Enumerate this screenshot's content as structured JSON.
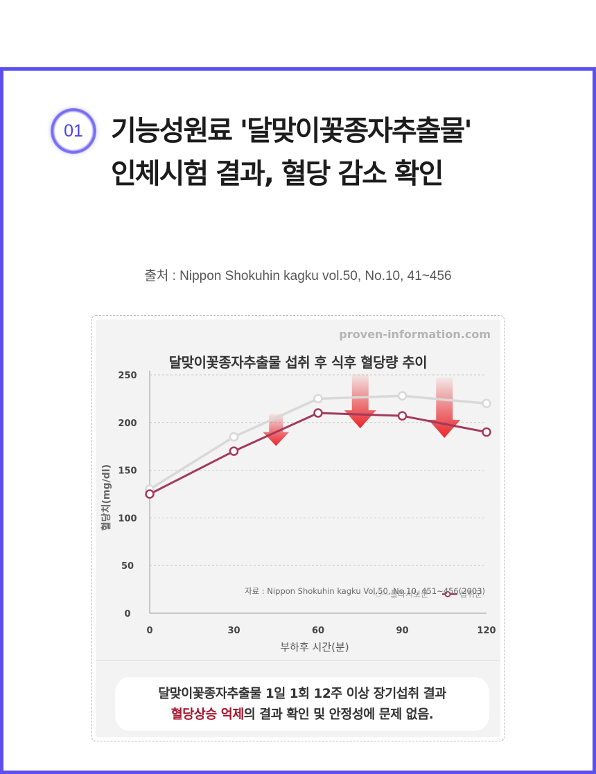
{
  "step_number": "01",
  "headline": {
    "line1": "기능성원료 '달맞이꽃종자추출물'",
    "line2": "인체시험 결과, 혈당 감소 확인"
  },
  "source_line": "출처 : Nippon Shokuhin kagku vol.50, No.10, 41~456",
  "chart_card": {
    "watermark": "proven-information.com",
    "summary": {
      "line1": "달맞이꽃종자추출물 1일 1회 12주 이상 장기섭취 결과",
      "highlight": "혈당상승 억제",
      "line2_rest": "의 결과 확인 및 안정성에 문제 없음."
    }
  },
  "colors": {
    "accent": "#5b4ff0",
    "placebo": "#d8d8d8",
    "intake": "#a3395b",
    "arrow": "#e8262b",
    "highlight": "#a4162c"
  },
  "chart_data": {
    "type": "line",
    "title": "달맞이꽃종자추출물 섭취 후 식후 혈당량 추이",
    "xlabel": "부하후 시간(분)",
    "ylabel": "혈당치(mg/dl)",
    "x": [
      0,
      30,
      60,
      90,
      120
    ],
    "x_ticks": [
      "0",
      "30",
      "60",
      "90",
      "120"
    ],
    "y_ticks": [
      "0",
      "50",
      "100",
      "150",
      "200",
      "250"
    ],
    "xlim": [
      0,
      120
    ],
    "ylim": [
      0,
      250
    ],
    "grid": "dashed horizontal",
    "legend_position": "bottom-right",
    "series": [
      {
        "name": "플라시보군",
        "x": [
          0,
          30,
          60,
          90,
          120
        ],
        "values": [
          130,
          185,
          225,
          228,
          220
        ]
      },
      {
        "name": "섭취군",
        "x": [
          0,
          30,
          60,
          90,
          120
        ],
        "values": [
          125,
          170,
          210,
          207,
          190
        ]
      }
    ],
    "reduction_arrows_at_x": [
      45,
      75,
      105
    ],
    "annotation": "자료 : Nippon Shokuhin kagku Vol.50, No.10, 451~456(2003)"
  }
}
